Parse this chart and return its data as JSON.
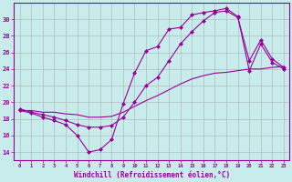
{
  "xlabel": "Windchill (Refroidissement éolien,°C)",
  "ylabel": "",
  "bg_color": "#c8ecec",
  "line_color": "#990099",
  "grid_color": "#b0b0b0",
  "xlim": [
    -0.5,
    23.5
  ],
  "ylim": [
    13,
    32
  ],
  "xticks": [
    0,
    1,
    2,
    3,
    4,
    5,
    6,
    7,
    8,
    9,
    10,
    11,
    12,
    13,
    14,
    15,
    16,
    17,
    18,
    19,
    20,
    21,
    22,
    23
  ],
  "yticks": [
    14,
    16,
    18,
    20,
    22,
    24,
    26,
    28,
    30
  ],
  "line1_x": [
    0,
    1,
    2,
    3,
    4,
    5,
    6,
    7,
    8,
    9,
    10,
    11,
    12,
    13,
    14,
    15,
    16,
    17,
    18,
    19,
    20,
    21,
    22,
    23
  ],
  "line1_y": [
    19.0,
    18.7,
    18.2,
    17.8,
    17.3,
    16.0,
    14.0,
    14.3,
    15.5,
    19.8,
    23.5,
    26.2,
    26.7,
    28.8,
    29.0,
    30.5,
    30.8,
    31.0,
    31.3,
    30.3,
    23.8,
    27.0,
    24.8,
    24.0
  ],
  "line2_x": [
    0,
    1,
    2,
    3,
    4,
    5,
    6,
    7,
    8,
    9,
    10,
    11,
    12,
    13,
    14,
    15,
    16,
    17,
    18,
    19,
    20,
    21,
    22,
    23
  ],
  "line2_y": [
    19.2,
    18.8,
    18.5,
    18.2,
    17.8,
    17.3,
    17.0,
    17.0,
    17.2,
    18.2,
    20.0,
    22.0,
    23.0,
    25.0,
    27.0,
    28.5,
    29.8,
    30.8,
    31.0,
    30.2,
    25.0,
    27.5,
    25.2,
    24.2
  ],
  "line3_x": [
    0,
    1,
    2,
    3,
    4,
    5,
    6,
    7,
    8,
    9,
    10,
    11,
    12,
    13,
    14,
    15,
    16,
    17,
    18,
    19,
    20,
    21,
    22,
    23
  ],
  "line3_y": [
    19.0,
    19.0,
    18.8,
    18.8,
    18.6,
    18.5,
    18.2,
    18.2,
    18.3,
    18.8,
    19.5,
    20.2,
    20.8,
    21.5,
    22.2,
    22.8,
    23.2,
    23.5,
    23.6,
    23.8,
    24.0,
    24.0,
    24.2,
    24.3
  ],
  "markersize": 2.5
}
